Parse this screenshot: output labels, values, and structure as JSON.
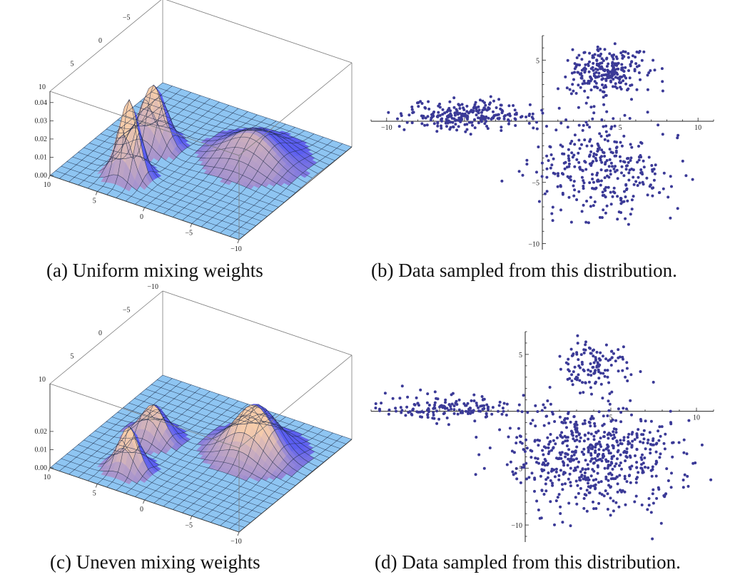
{
  "colors": {
    "floor": "#8ec5f2",
    "floor_line": "#1d2a45",
    "peak_blue": "#5a5df0",
    "peak_pink": "#f2b8c8",
    "peak_peach": "#f7cfa6",
    "point": "#3b3a97",
    "box": "#7a7a7a"
  },
  "chart_data": [
    {
      "id": "a",
      "type": "surface",
      "caption": "(a) Uniform mixing weights",
      "x_ticks": [
        "−10",
        "−5",
        "0",
        "5",
        "10"
      ],
      "y_ticks": [
        "10",
        "5",
        "0",
        "−5",
        "−10"
      ],
      "z_ticks": [
        "0.00",
        "0.01",
        "0.02",
        "0.03",
        "0.04"
      ],
      "xlim": [
        -10,
        10
      ],
      "ylim": [
        -10,
        10
      ],
      "zlim": [
        0,
        0.04
      ],
      "components": [
        {
          "mx": -4,
          "my": 6,
          "s": 1.0,
          "h": 0.042
        },
        {
          "mx": -5,
          "my": 0,
          "s": 1.2,
          "h": 0.033
        },
        {
          "mx": 4,
          "my": -3,
          "s": 2.4,
          "h": 0.016
        }
      ]
    },
    {
      "id": "b",
      "type": "scatter",
      "caption": "(b) Data sampled from this distribution.",
      "x_ticks": [
        "−10",
        "5",
        "10"
      ],
      "y_ticks": [
        "5",
        "−5",
        "−10"
      ],
      "xlim": [
        -11,
        11
      ],
      "ylim": [
        -10.5,
        7
      ],
      "clusters": [
        {
          "mx": 4,
          "my": 4,
          "sx": 1.2,
          "sy": 1.0,
          "n": 260
        },
        {
          "mx": -4.5,
          "my": 0.5,
          "sx": 2.2,
          "sy": 0.6,
          "n": 260
        },
        {
          "mx": 4,
          "my": -4,
          "sx": 2.3,
          "sy": 2.0,
          "n": 330
        }
      ]
    },
    {
      "id": "c",
      "type": "surface",
      "caption": "(c) Uneven mixing weights",
      "x_ticks": [
        "−10",
        "−5",
        "0",
        "5",
        "10"
      ],
      "y_ticks": [
        "10",
        "5",
        "0",
        "−5",
        "−10"
      ],
      "z_ticks": [
        "0.00",
        "0.01",
        "0.02"
      ],
      "xlim": [
        -10,
        10
      ],
      "ylim": [
        -10,
        10
      ],
      "zlim": [
        0,
        0.03
      ],
      "components": [
        {
          "mx": -4,
          "my": 6,
          "s": 1.0,
          "h": 0.023
        },
        {
          "mx": -5,
          "my": 0,
          "s": 1.2,
          "h": 0.018
        },
        {
          "mx": 4,
          "my": -3,
          "s": 2.0,
          "h": 0.026
        }
      ]
    },
    {
      "id": "d",
      "type": "scatter",
      "caption": "(d) Data sampled from this distribution.",
      "x_ticks": [
        "5",
        "10"
      ],
      "y_ticks": [
        "5",
        "−5",
        "−10"
      ],
      "xlim": [
        -9,
        11
      ],
      "ylim": [
        -11.5,
        7
      ],
      "clusters": [
        {
          "mx": 4,
          "my": 4,
          "sx": 1.0,
          "sy": 1.0,
          "n": 120
        },
        {
          "mx": -4.5,
          "my": 0.3,
          "sx": 2.2,
          "sy": 0.6,
          "n": 160
        },
        {
          "mx": 4,
          "my": -4,
          "sx": 2.4,
          "sy": 2.3,
          "n": 620
        }
      ]
    }
  ]
}
